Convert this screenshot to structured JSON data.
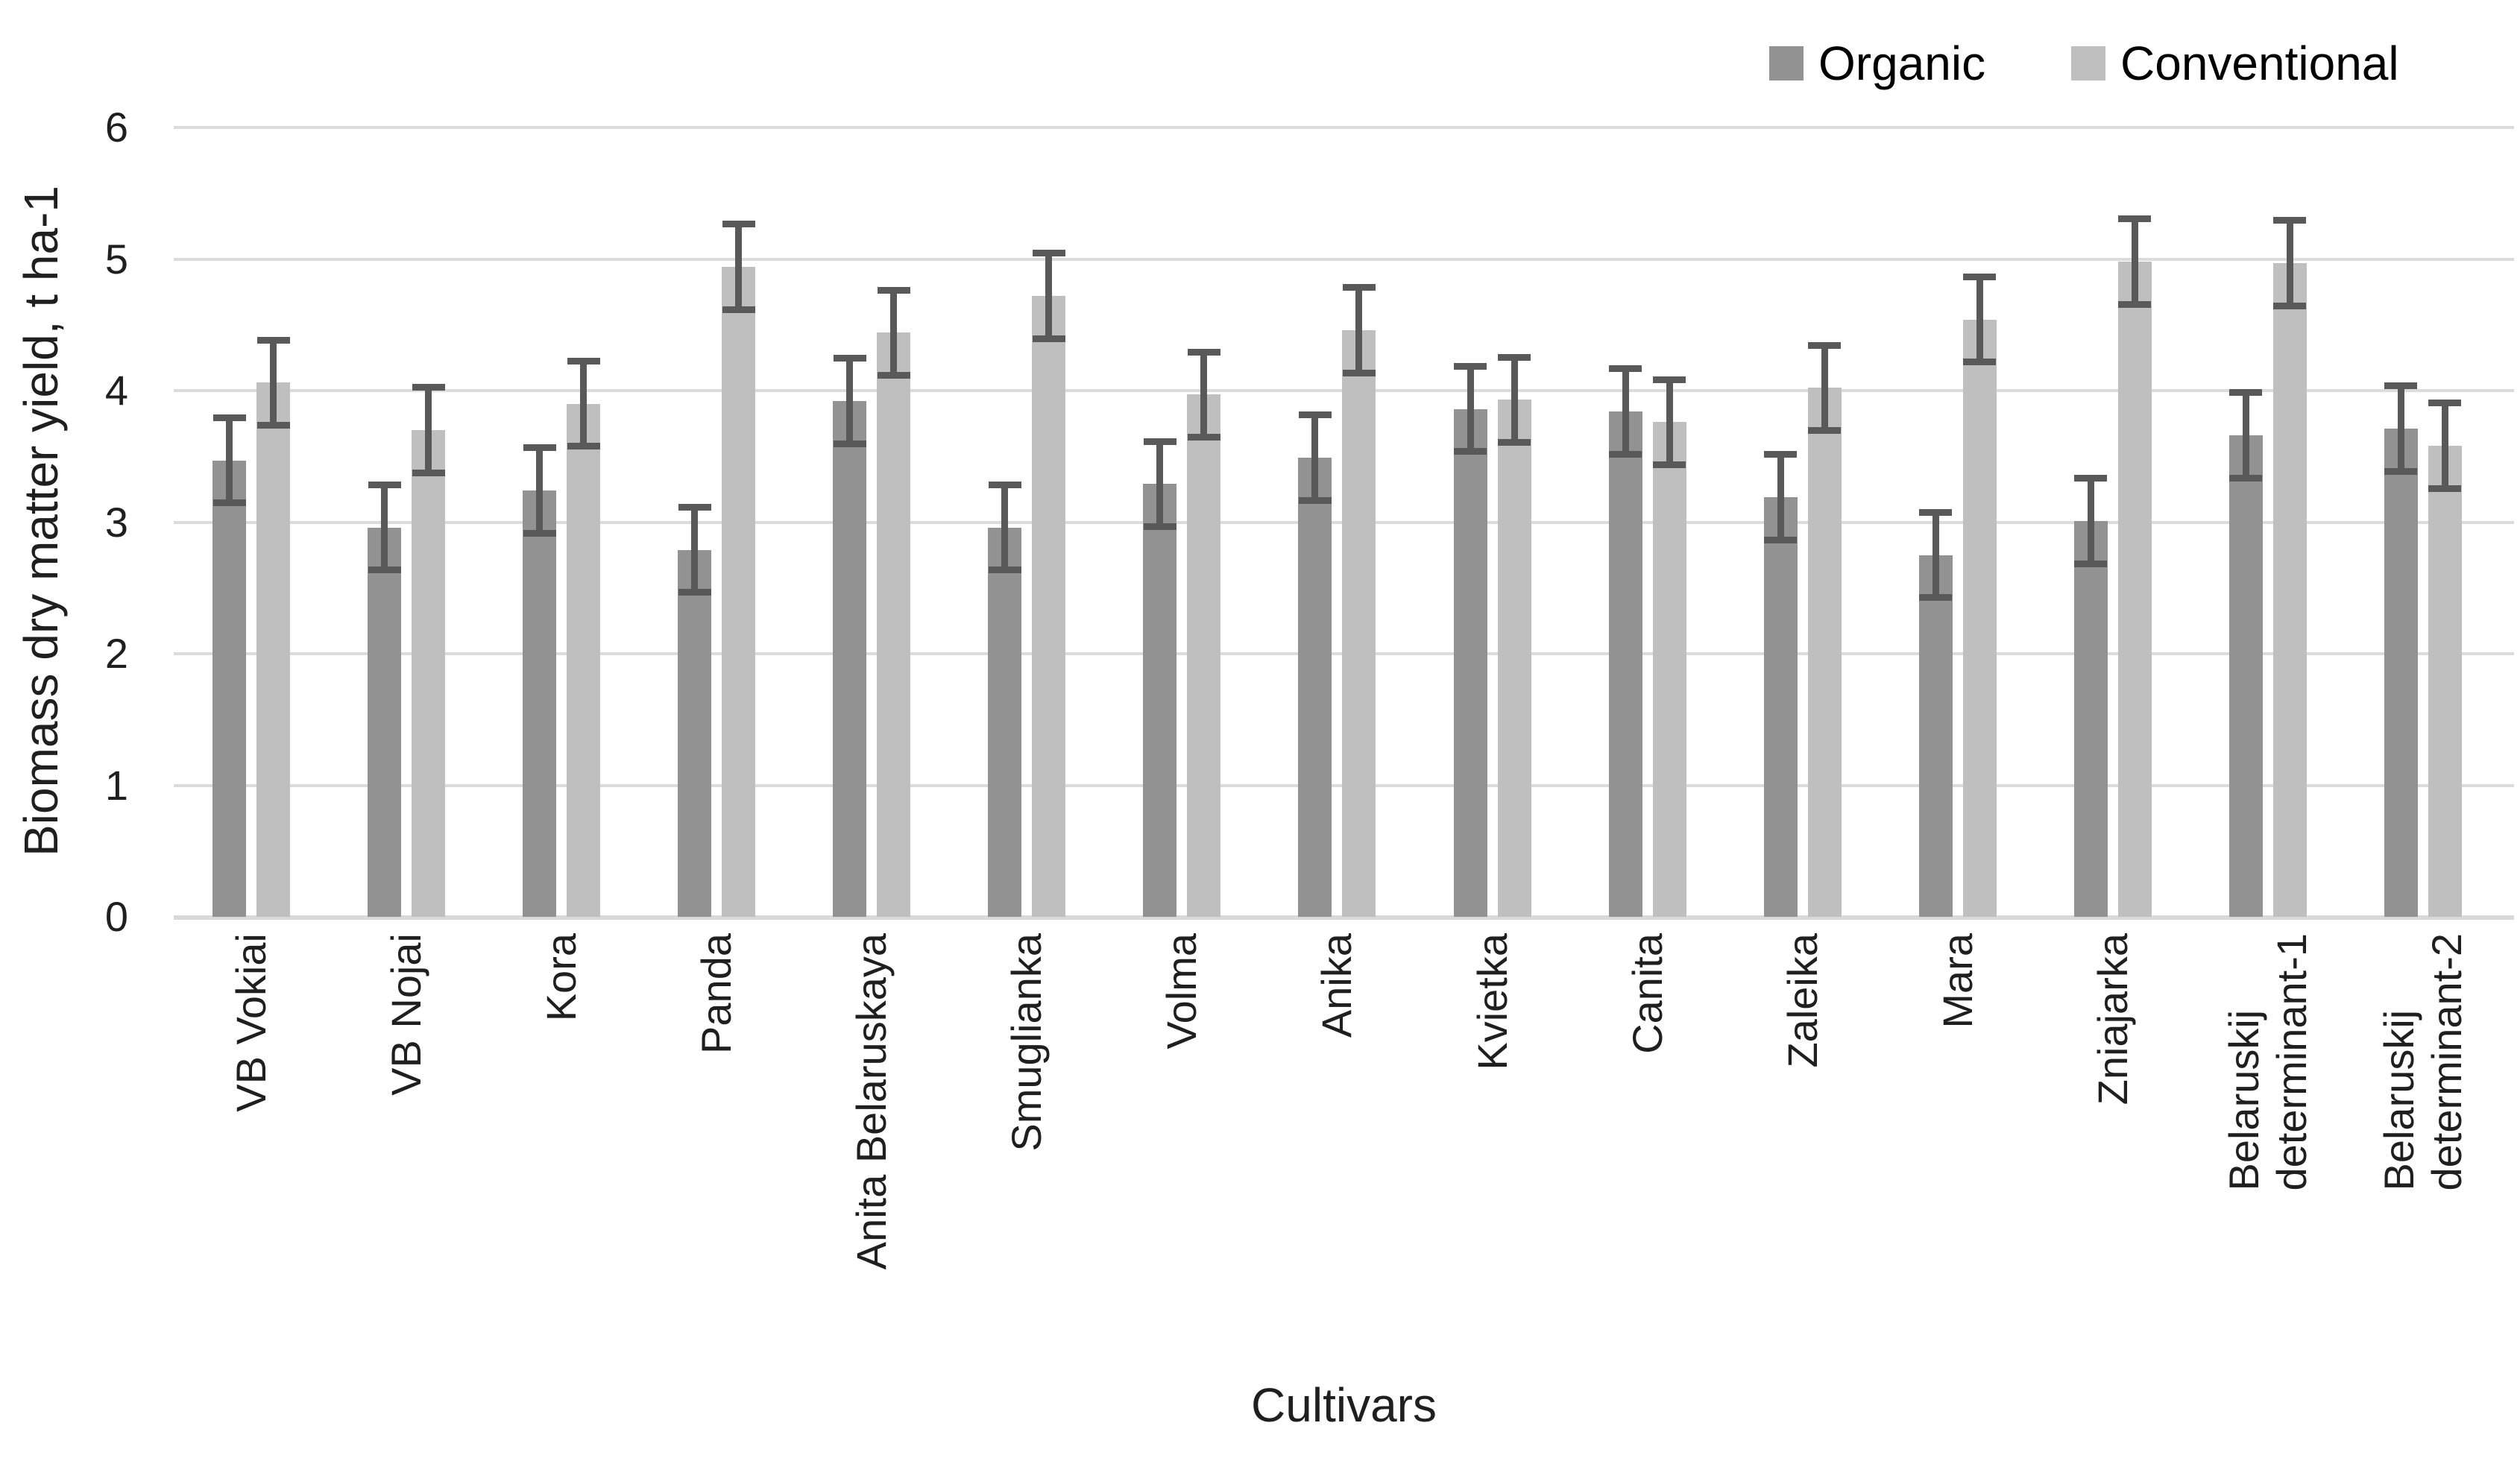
{
  "legend": {
    "items": [
      {
        "label": "Organic",
        "color": "#929292"
      },
      {
        "label": "Conventional",
        "color": "#bfbfbf"
      }
    ]
  },
  "y_axis": {
    "title": "Biomass dry matter yield, t ha-1",
    "tick_labels": [
      "0",
      "1",
      "2",
      "3",
      "4",
      "5",
      "6"
    ]
  },
  "x_axis": {
    "title": "Cultivars"
  },
  "chart_data": {
    "type": "bar",
    "title": "",
    "categories": [
      "VB Vokiai",
      "VB Nojai",
      "Kora",
      "Panda",
      "Anita Belaruskaya",
      "Smuglianka",
      "Volma",
      "Anika",
      "Kvietka",
      "Canita",
      "Zaleika",
      "Mara",
      "Zniajarka",
      "Belaruskij determinant-1",
      "Belaruskij determinant-2"
    ],
    "series": [
      {
        "name": "Organic",
        "color": "#929292",
        "values": [
          3.47,
          2.96,
          3.24,
          2.79,
          3.92,
          2.96,
          3.29,
          3.49,
          3.86,
          3.84,
          3.19,
          2.75,
          3.01,
          3.66,
          3.71
        ],
        "errors": [
          0.35,
          0.35,
          0.35,
          0.35,
          0.35,
          0.35,
          0.35,
          0.35,
          0.35,
          0.35,
          0.35,
          0.35,
          0.35,
          0.35,
          0.35
        ]
      },
      {
        "name": "Conventional",
        "color": "#bfbfbf",
        "values": [
          4.06,
          3.7,
          3.9,
          4.94,
          4.44,
          4.72,
          3.97,
          4.46,
          3.93,
          3.76,
          4.02,
          4.54,
          4.98,
          4.97,
          3.58
        ],
        "errors": [
          0.35,
          0.35,
          0.35,
          0.35,
          0.35,
          0.35,
          0.35,
          0.35,
          0.35,
          0.35,
          0.35,
          0.35,
          0.35,
          0.35,
          0.35
        ]
      }
    ],
    "xlabel": "Cultivars",
    "ylabel": "Biomass dry matter yield, t ha-1",
    "ylim": [
      0,
      6
    ],
    "ytick_step": 1,
    "grid": true,
    "legend_position": "top-right",
    "error_bar_color": "#595959",
    "gridline_color": "#dcdcdc",
    "axis_line_color": "#d9d9d9",
    "text_color": "#1f1f1f"
  }
}
